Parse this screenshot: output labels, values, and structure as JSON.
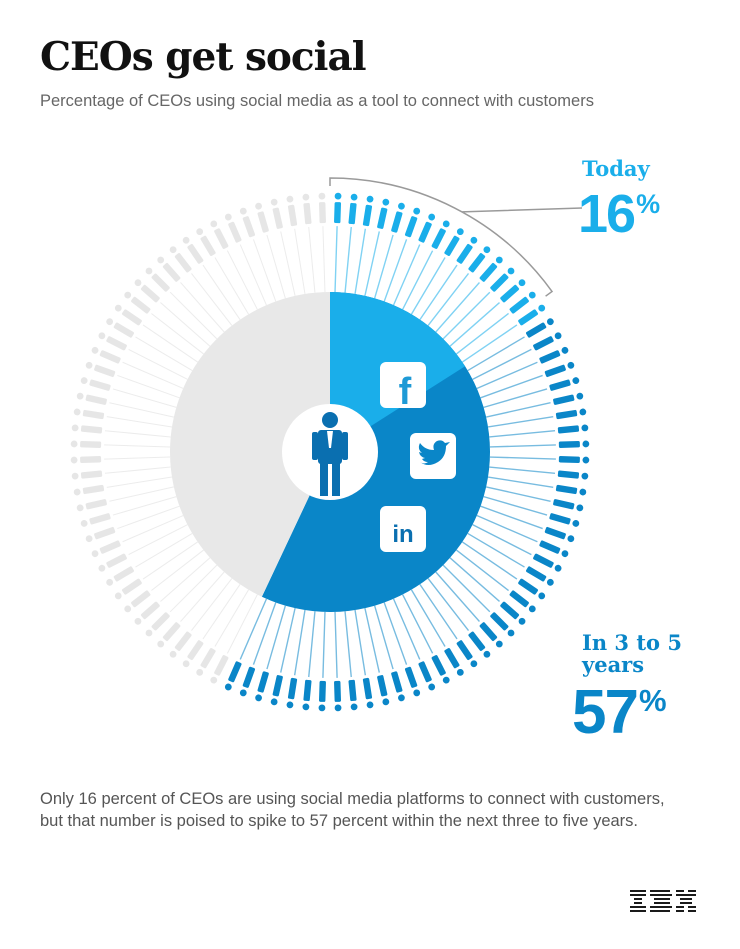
{
  "title": "CEOs get social",
  "subtitle": "Percentage of CEOs using social media as a tool to connect with customers",
  "stats": {
    "today_label": "Today",
    "today_value": "16",
    "future_label": "In 3 to 5 years",
    "future_value": "57",
    "percent_sign": "%"
  },
  "description": "Only 16 percent of CEOs are using social media platforms to connect with customers, but that number is poised to spike to 57 percent within the next three to five years.",
  "logo": "IBM",
  "icons": [
    "facebook-icon",
    "twitter-icon",
    "linkedin-icon",
    "ceo-person-icon"
  ],
  "colors": {
    "today": "#1aaeea",
    "future": "#0a86c8",
    "rest": "#e6e6e6",
    "divider": "#ffffff"
  },
  "chart_data": {
    "type": "pie",
    "title": "CEOs get social",
    "series": [
      {
        "name": "Today",
        "values": [
          16
        ]
      },
      {
        "name": "In 3 to 5 years",
        "values": [
          57
        ]
      }
    ],
    "unit": "%"
  }
}
